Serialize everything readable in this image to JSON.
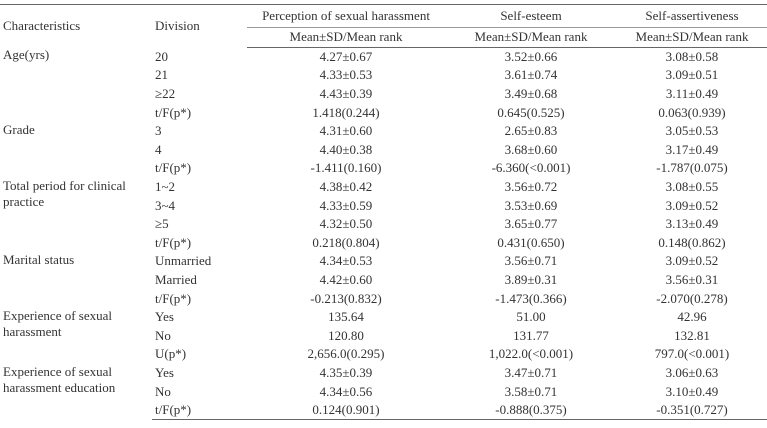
{
  "table": {
    "header": [
      "Characteristics",
      "Division",
      "Perception of sexual harassment",
      "Self-esteem",
      "Self-assertiveness"
    ],
    "subheader": [
      "Mean±SD/Mean rank",
      "Mean±SD/Mean rank",
      "Mean±SD/Mean rank"
    ],
    "groups": [
      {
        "characteristic": "Age(yrs)",
        "rows": [
          [
            "20",
            "4.27±0.67",
            "3.52±0.66",
            "3.08±0.58"
          ],
          [
            "21",
            "4.33±0.53",
            "3.61±0.74",
            "3.09±0.51"
          ],
          [
            "≥22",
            "4.43±0.39",
            "3.49±0.68",
            "3.11±0.49"
          ],
          [
            "t/F(p*)",
            "1.418(0.244)",
            "0.645(0.525)",
            "0.063(0.939)"
          ]
        ]
      },
      {
        "characteristic": "Grade",
        "rows": [
          [
            "3",
            "4.31±0.60",
            "2.65±0.83",
            "3.05±0.53"
          ],
          [
            "4",
            "4.40±0.38",
            "3.68±0.60",
            "3.17±0.49"
          ],
          [
            "t/F(p*)",
            "-1.411(0.160)",
            "-6.360(<0.001)",
            "-1.787(0.075)"
          ]
        ]
      },
      {
        "characteristic": "Total period for clinical practice",
        "rows": [
          [
            "1~2",
            "4.38±0.42",
            "3.56±0.72",
            "3.08±0.55"
          ],
          [
            "3~4",
            "4.33±0.59",
            "3.53±0.69",
            "3.09±0.52"
          ],
          [
            "≥5",
            "4.32±0.50",
            "3.65±0.77",
            "3.13±0.49"
          ],
          [
            "t/F(p*)",
            "0.218(0.804)",
            "0.431(0.650)",
            "0.148(0.862)"
          ]
        ]
      },
      {
        "characteristic": "Marital status",
        "rows": [
          [
            "Unmarried",
            "4.34±0.53",
            "3.56±0.71",
            "3.09±0.52"
          ],
          [
            "Married",
            "4.42±0.60",
            "3.89±0.31",
            "3.56±0.31"
          ],
          [
            "t/F(p*)",
            "-0.213(0.832)",
            "-1.473(0.366)",
            "-2.070(0.278)"
          ]
        ]
      },
      {
        "characteristic": "Experience of sexual harassment",
        "rows": [
          [
            "Yes",
            "135.64",
            "51.00",
            "42.96"
          ],
          [
            "No",
            "120.80",
            "131.77",
            "132.81"
          ],
          [
            "U(p*)",
            "2,656.0(0.295)",
            "1,022.0(<0.001)",
            "797.0(<0.001)"
          ]
        ]
      },
      {
        "characteristic": "Experience of sexual harassment education",
        "rows": [
          [
            "Yes",
            "4.35±0.39",
            "3.47±0.71",
            "3.06±0.63"
          ],
          [
            "No",
            "4.34±0.56",
            "3.58±0.71",
            "3.10±0.49"
          ],
          [
            "t/F(p*)",
            "0.124(0.901)",
            "-0.888(0.375)",
            "-0.351(0.727)"
          ]
        ]
      }
    ]
  }
}
